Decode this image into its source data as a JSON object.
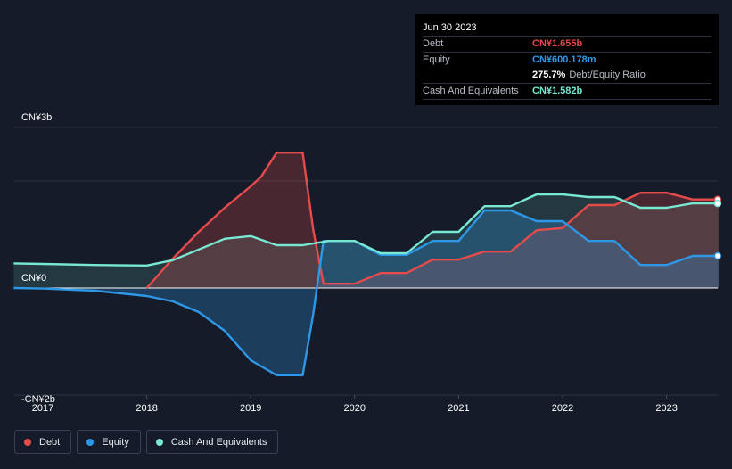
{
  "tooltip": {
    "date": "Jun 30 2023",
    "debt_label": "Debt",
    "debt_value": "CN¥1.655b",
    "equity_label": "Equity",
    "equity_value": "CN¥600.178m",
    "ratio_value": "275.7%",
    "ratio_label": "Debt/Equity Ratio",
    "cash_label": "Cash And Equivalents",
    "cash_value": "CN¥1.582b"
  },
  "legend": {
    "debt": "Debt",
    "equity": "Equity",
    "cash": "Cash And Equivalents"
  },
  "colors": {
    "debt": "#e64b4b",
    "equity": "#2e97e6",
    "cash": "#78e8d2",
    "background": "#151b28"
  },
  "chart_data": {
    "type": "line",
    "title": "",
    "xlabel": "",
    "ylabel": "",
    "ylim": [
      -2.0,
      3.0
    ],
    "y_ticks": [
      {
        "value": 3,
        "label": "CN¥3b"
      },
      {
        "value": 0,
        "label": "CN¥0"
      },
      {
        "value": -2,
        "label": "-CN¥2b"
      }
    ],
    "x_ticks": [
      {
        "value": 2017.0,
        "label": "2017"
      },
      {
        "value": 2018.0,
        "label": "2018"
      },
      {
        "value": 2019.0,
        "label": "2019"
      },
      {
        "value": 2020.0,
        "label": "2020"
      },
      {
        "value": 2021.0,
        "label": "2021"
      },
      {
        "value": 2022.0,
        "label": "2022"
      },
      {
        "value": 2023.0,
        "label": "2023"
      }
    ],
    "xlim": [
      2016.72,
      2023.5
    ],
    "series": [
      {
        "name": "Debt",
        "x": [
          2018.0,
          2018.25,
          2018.5,
          2018.75,
          2019.0,
          2019.1,
          2019.25,
          2019.5,
          2019.6,
          2019.7,
          2019.85,
          2020.0,
          2020.25,
          2020.5,
          2020.75,
          2021.0,
          2021.25,
          2021.5,
          2021.75,
          2022.0,
          2022.25,
          2022.5,
          2022.75,
          2023.0,
          2023.25,
          2023.5
        ],
        "values": [
          0.0,
          0.55,
          1.05,
          1.5,
          1.9,
          2.08,
          2.53,
          2.53,
          1.1,
          0.08,
          0.08,
          0.08,
          0.28,
          0.28,
          0.53,
          0.53,
          0.68,
          0.68,
          1.08,
          1.12,
          1.55,
          1.55,
          1.78,
          1.78,
          1.655,
          1.655
        ]
      },
      {
        "name": "Equity",
        "x": [
          2016.72,
          2017.0,
          2017.5,
          2018.0,
          2018.25,
          2018.5,
          2018.75,
          2019.0,
          2019.25,
          2019.5,
          2019.6,
          2019.7,
          2020.0,
          2020.25,
          2020.5,
          2020.75,
          2021.0,
          2021.25,
          2021.5,
          2021.75,
          2022.0,
          2022.25,
          2022.5,
          2022.75,
          2023.0,
          2023.25,
          2023.5
        ],
        "values": [
          0.0,
          -0.01,
          -0.05,
          -0.15,
          -0.25,
          -0.45,
          -0.8,
          -1.35,
          -1.63,
          -1.63,
          -0.5,
          0.88,
          0.88,
          0.62,
          0.62,
          0.88,
          0.88,
          1.45,
          1.45,
          1.25,
          1.25,
          0.88,
          0.88,
          0.43,
          0.43,
          0.6,
          0.6
        ]
      },
      {
        "name": "Cash And Equivalents",
        "x": [
          2016.72,
          2017.0,
          2017.5,
          2018.0,
          2018.25,
          2018.5,
          2018.75,
          2019.0,
          2019.25,
          2019.5,
          2019.75,
          2020.0,
          2020.25,
          2020.5,
          2020.75,
          2021.0,
          2021.25,
          2021.5,
          2021.75,
          2022.0,
          2022.25,
          2022.5,
          2022.75,
          2023.0,
          2023.25,
          2023.5
        ],
        "values": [
          0.46,
          0.45,
          0.43,
          0.42,
          0.52,
          0.72,
          0.92,
          0.97,
          0.8,
          0.8,
          0.88,
          0.88,
          0.65,
          0.65,
          1.05,
          1.05,
          1.53,
          1.53,
          1.75,
          1.75,
          1.7,
          1.7,
          1.5,
          1.5,
          1.582,
          1.582
        ]
      }
    ]
  }
}
